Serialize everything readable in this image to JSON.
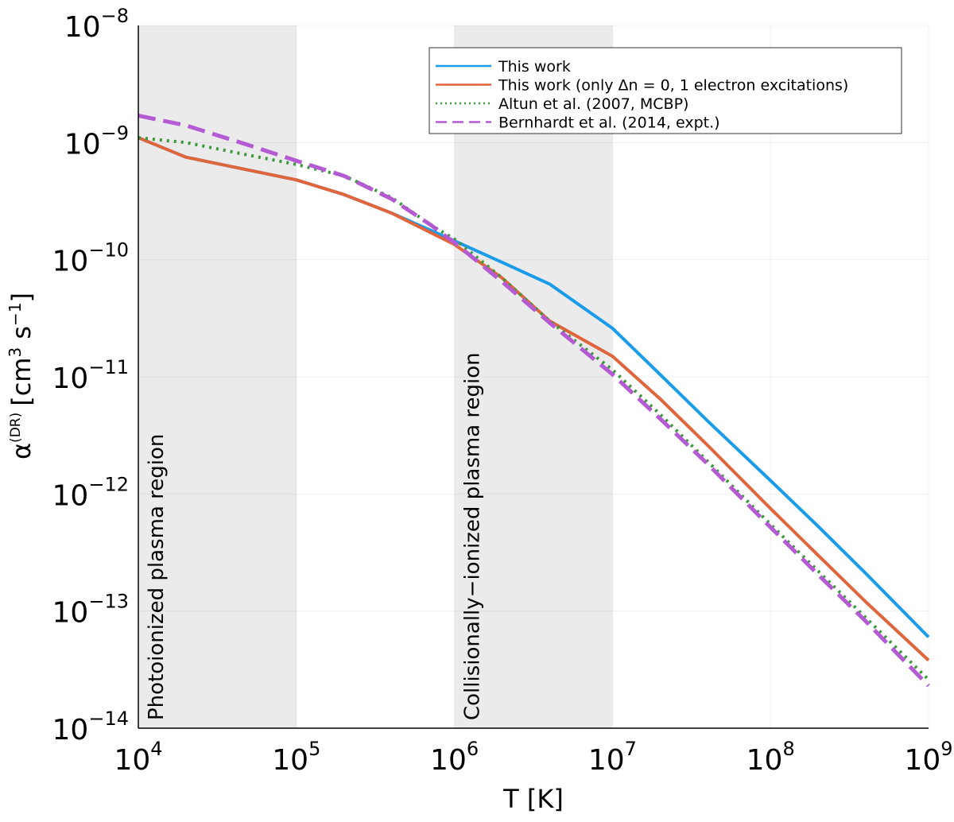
{
  "chart_data": {
    "type": "line",
    "title": "",
    "xlabel": "T [K]",
    "ylabel": "α(DR) [cm³ s⁻¹]",
    "ylabel_parts": {
      "symbol": "α",
      "superscript": "(DR)",
      "unit_open": "[cm",
      "unit_exp1": "3",
      "unit_mid": " s",
      "unit_exp2": "−1",
      "unit_close": "]"
    },
    "x_scale": "log",
    "y_scale": "log",
    "xlim": [
      10000,
      1000000000
    ],
    "ylim": [
      1e-14,
      1e-08
    ],
    "x_ticks": [
      {
        "value": 10000,
        "base": "10",
        "exp": "4"
      },
      {
        "value": 100000,
        "base": "10",
        "exp": "5"
      },
      {
        "value": 1000000,
        "base": "10",
        "exp": "6"
      },
      {
        "value": 10000000,
        "base": "10",
        "exp": "7"
      },
      {
        "value": 100000000,
        "base": "10",
        "exp": "8"
      },
      {
        "value": 1000000000,
        "base": "10",
        "exp": "9"
      }
    ],
    "y_ticks": [
      {
        "value": 1e-14,
        "base": "10",
        "exp": "−14"
      },
      {
        "value": 1e-13,
        "base": "10",
        "exp": "−13"
      },
      {
        "value": 1e-12,
        "base": "10",
        "exp": "−12"
      },
      {
        "value": 1e-11,
        "base": "10",
        "exp": "−11"
      },
      {
        "value": 1e-10,
        "base": "10",
        "exp": "−10"
      },
      {
        "value": 1e-09,
        "base": "10",
        "exp": "−9"
      },
      {
        "value": 1e-08,
        "base": "10",
        "exp": "−8"
      }
    ],
    "grid": true,
    "legend_position": "top-right",
    "shaded_regions": [
      {
        "label": "Photoionized plasma region",
        "x_range": [
          10000,
          100000
        ],
        "color": "#ebebeb"
      },
      {
        "label": "Collisionally−ionized plasma region",
        "x_range": [
          1000000,
          10000000
        ],
        "color": "#ebebeb"
      }
    ],
    "series": [
      {
        "name": "This work",
        "color": "#1a9cea",
        "style": "solid",
        "points": [
          [
            10000,
            1.1e-09
          ],
          [
            20000,
            7.5e-10
          ],
          [
            100000,
            4.8e-10
          ],
          [
            200000,
            3.6e-10
          ],
          [
            400000,
            2.5e-10
          ],
          [
            1000000,
            1.45e-10
          ],
          [
            2000000,
            9.5e-11
          ],
          [
            4000000,
            6.2e-11
          ],
          [
            10000000,
            2.6e-11
          ],
          [
            20000000,
            1.05e-11
          ],
          [
            40000000,
            4.2e-12
          ],
          [
            100000000,
            1.3e-12
          ],
          [
            200000000,
            5.3e-13
          ],
          [
            400000000,
            2.1e-13
          ],
          [
            1000000000,
            6e-14
          ]
        ]
      },
      {
        "name": "This work (only Δn = 0, 1 electron excitations)",
        "color": "#e0653c",
        "style": "solid",
        "points": [
          [
            10000,
            1.1e-09
          ],
          [
            20000,
            7.5e-10
          ],
          [
            100000,
            4.8e-10
          ],
          [
            200000,
            3.6e-10
          ],
          [
            400000,
            2.5e-10
          ],
          [
            1000000,
            1.35e-10
          ],
          [
            2000000,
            7e-11
          ],
          [
            4000000,
            3e-11
          ],
          [
            10000000,
            1.5e-11
          ],
          [
            20000000,
            6.5e-12
          ],
          [
            40000000,
            2.6e-12
          ],
          [
            100000000,
            7.5e-13
          ],
          [
            200000000,
            3e-13
          ],
          [
            400000000,
            1.2e-13
          ],
          [
            1000000000,
            3.8e-14
          ]
        ]
      },
      {
        "name": "Altun et al. (2007, MCBP)",
        "color": "#3a9a3a",
        "style": "dotted",
        "points": [
          [
            10000,
            1.1e-09
          ],
          [
            20000,
            1e-09
          ],
          [
            50000,
            7.8e-10
          ],
          [
            100000,
            6.5e-10
          ],
          [
            200000,
            5.2e-10
          ],
          [
            400000,
            3.4e-10
          ],
          [
            700000,
            2e-10
          ],
          [
            1000000,
            1.5e-10
          ],
          [
            2000000,
            7e-11
          ],
          [
            4000000,
            3e-11
          ],
          [
            10000000,
            1.15e-11
          ],
          [
            20000000,
            4.8e-12
          ],
          [
            40000000,
            1.9e-12
          ],
          [
            100000000,
            5.5e-13
          ],
          [
            200000000,
            2.2e-13
          ],
          [
            400000000,
            8.8e-14
          ],
          [
            1000000000,
            2.6e-14
          ]
        ]
      },
      {
        "name": "Bernhardt et al. (2014, expt.)",
        "color": "#b45ad2",
        "style": "dashed",
        "points": [
          [
            10000,
            1.7e-09
          ],
          [
            20000,
            1.4e-09
          ],
          [
            50000,
            9.5e-10
          ],
          [
            100000,
            7e-10
          ],
          [
            200000,
            5.2e-10
          ],
          [
            400000,
            3.3e-10
          ],
          [
            700000,
            2e-10
          ],
          [
            1000000,
            1.4e-10
          ],
          [
            2000000,
            6.5e-11
          ],
          [
            4000000,
            2.9e-11
          ],
          [
            10000000,
            1.05e-11
          ],
          [
            20000000,
            4.4e-12
          ],
          [
            40000000,
            1.8e-12
          ],
          [
            100000000,
            5.2e-13
          ],
          [
            200000000,
            2.05e-13
          ],
          [
            400000000,
            8.2e-14
          ],
          [
            1000000000,
            2.3e-14
          ]
        ]
      }
    ]
  }
}
